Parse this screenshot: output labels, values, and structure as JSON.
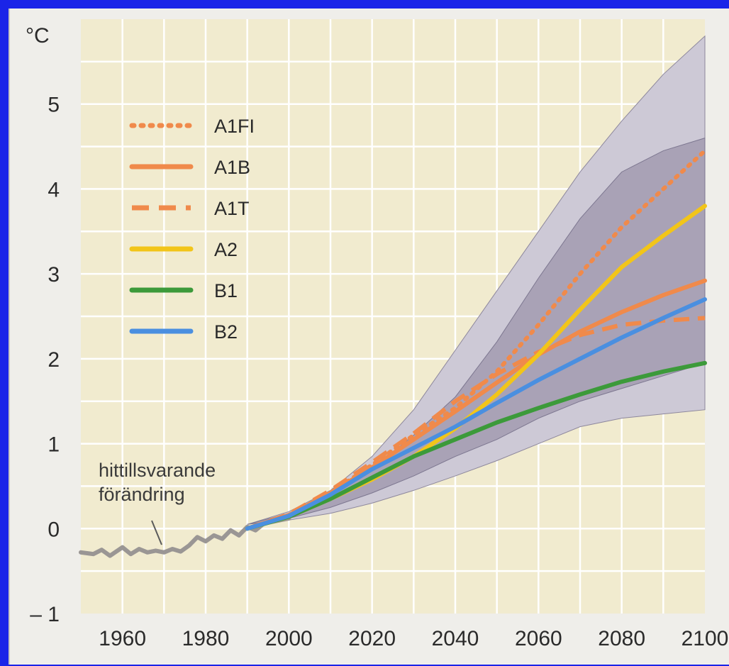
{
  "chart_data": {
    "type": "line",
    "title": "",
    "ylabel": "°C",
    "xlabel": "",
    "xlim": [
      1950,
      2100
    ],
    "ylim": [
      -1,
      6
    ],
    "x_ticks": [
      "1960",
      "1980",
      "2000",
      "2020",
      "2040",
      "2060",
      "2080",
      "2100"
    ],
    "y_ticks": [
      "– 1",
      "0",
      "1",
      "2",
      "3",
      "4",
      "5"
    ],
    "grid": true,
    "legend_position": "top-left",
    "historical": {
      "label": "hittillsvarande förändring",
      "label_lines": [
        "hittillsvarande",
        "förändring"
      ],
      "color": "#9a9694",
      "x": [
        1950,
        1953,
        1955,
        1957,
        1960,
        1962,
        1964,
        1966,
        1968,
        1970,
        1972,
        1974,
        1976,
        1978,
        1980,
        1982,
        1984,
        1986,
        1988,
        1990,
        1992,
        1994,
        1996,
        1998,
        2000
      ],
      "values": [
        -0.28,
        -0.3,
        -0.25,
        -0.32,
        -0.22,
        -0.3,
        -0.24,
        -0.28,
        -0.26,
        -0.28,
        -0.24,
        -0.27,
        -0.2,
        -0.1,
        -0.15,
        -0.08,
        -0.12,
        -0.02,
        -0.08,
        0.02,
        -0.02,
        0.06,
        0.08,
        0.1,
        0.12
      ]
    },
    "bands": {
      "outer_color": "#cdc9d6",
      "inner_color": "#a9a2b6",
      "x": [
        1990,
        2000,
        2010,
        2020,
        2030,
        2040,
        2050,
        2060,
        2070,
        2080,
        2090,
        2100
      ],
      "outer_upper": [
        0.05,
        0.2,
        0.45,
        0.85,
        1.4,
        2.1,
        2.8,
        3.5,
        4.2,
        4.8,
        5.35,
        5.8
      ],
      "outer_lower": [
        0.05,
        0.1,
        0.18,
        0.3,
        0.45,
        0.62,
        0.8,
        1.0,
        1.2,
        1.3,
        1.35,
        1.4
      ],
      "inner_upper": [
        0.05,
        0.18,
        0.38,
        0.7,
        1.1,
        1.55,
        2.2,
        2.95,
        3.65,
        4.2,
        4.45,
        4.6
      ],
      "inner_lower": [
        0.05,
        0.12,
        0.25,
        0.42,
        0.62,
        0.85,
        1.05,
        1.3,
        1.5,
        1.65,
        1.8,
        1.95
      ]
    },
    "x": [
      1990,
      2000,
      2010,
      2020,
      2030,
      2040,
      2050,
      2060,
      2070,
      2080,
      2090,
      2100
    ],
    "series": [
      {
        "name": "A1FI",
        "color": "#f08a4b",
        "dash": "dot",
        "values": [
          0,
          0.16,
          0.42,
          0.75,
          1.1,
          1.42,
          1.85,
          2.4,
          3.0,
          3.55,
          4.0,
          4.45
        ]
      },
      {
        "name": "A1B",
        "color": "#f08a4b",
        "dash": "solid",
        "values": [
          0,
          0.16,
          0.42,
          0.72,
          1.05,
          1.38,
          1.72,
          2.05,
          2.32,
          2.55,
          2.75,
          2.92
        ]
      },
      {
        "name": "A1T",
        "color": "#f08a4b",
        "dash": "dash",
        "values": [
          0,
          0.17,
          0.45,
          0.78,
          1.12,
          1.5,
          1.82,
          2.08,
          2.28,
          2.4,
          2.45,
          2.48
        ]
      },
      {
        "name": "A2",
        "color": "#f2c519",
        "dash": "solid",
        "values": [
          0,
          0.14,
          0.35,
          0.58,
          0.85,
          1.18,
          1.58,
          2.05,
          2.58,
          3.08,
          3.45,
          3.8
        ]
      },
      {
        "name": "B1",
        "color": "#3c9a3a",
        "dash": "solid",
        "values": [
          0,
          0.14,
          0.35,
          0.6,
          0.85,
          1.05,
          1.25,
          1.42,
          1.58,
          1.73,
          1.85,
          1.95
        ]
      },
      {
        "name": "B2",
        "color": "#4a8fe0",
        "dash": "solid",
        "values": [
          0,
          0.15,
          0.4,
          0.7,
          0.95,
          1.2,
          1.48,
          1.75,
          2.0,
          2.25,
          2.48,
          2.7
        ]
      }
    ]
  }
}
